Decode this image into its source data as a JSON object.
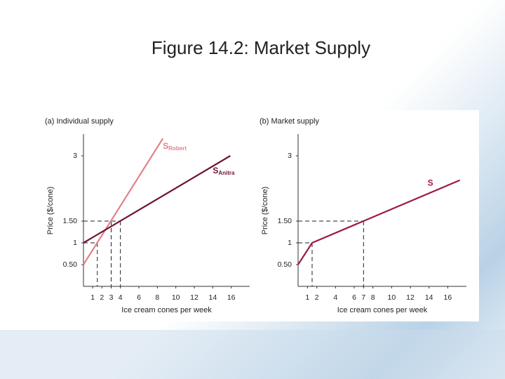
{
  "title": "Figure 14.2: Market Supply",
  "chart_data": [
    {
      "type": "line",
      "title": "(a) Individual supply",
      "x_label": "Ice cream cones per week",
      "y_label": "Price ($/cone)",
      "xlim": [
        0,
        18
      ],
      "ylim": [
        0,
        3.5
      ],
      "xticks": [
        1,
        2,
        3,
        4,
        6,
        8,
        10,
        12,
        14,
        16
      ],
      "yticks": [
        {
          "value": 0.5,
          "label": "0.50"
        },
        1,
        {
          "value": 1.5,
          "label": "1.50"
        },
        3
      ],
      "series": [
        {
          "name": "S",
          "subscript": "Robert",
          "color": "#e2808b",
          "x": [
            0,
            8.6
          ],
          "y": [
            0.5,
            3.4
          ]
        },
        {
          "name": "S",
          "subscript": "Anitra",
          "color": "#6e1534",
          "x": [
            0,
            15.9
          ],
          "y": [
            1,
            3
          ]
        }
      ],
      "guides": [
        {
          "x": 1.5,
          "y": 1
        },
        {
          "x": 3,
          "y": 1.5
        },
        {
          "x": 4,
          "y": 1.5
        }
      ]
    },
    {
      "type": "line",
      "title": "(b) Market supply",
      "x_label": "Ice cream cones per week",
      "y_label": "Price ($/cone)",
      "xlim": [
        0,
        18
      ],
      "ylim": [
        0,
        3.5
      ],
      "xticks": [
        1,
        2,
        4,
        6,
        7,
        8,
        10,
        12,
        14,
        16
      ],
      "yticks": [
        {
          "value": 0.5,
          "label": "0.50"
        },
        1,
        {
          "value": 1.5,
          "label": "1.50"
        },
        3
      ],
      "series": [
        {
          "name": "S",
          "color": "#9b1b40",
          "x": [
            0,
            1.5,
            17.3
          ],
          "y": [
            0.5,
            1,
            2.44
          ]
        }
      ],
      "guides": [
        {
          "x": 1.5,
          "y": 1
        },
        {
          "x": 7,
          "y": 1.5
        }
      ]
    }
  ]
}
